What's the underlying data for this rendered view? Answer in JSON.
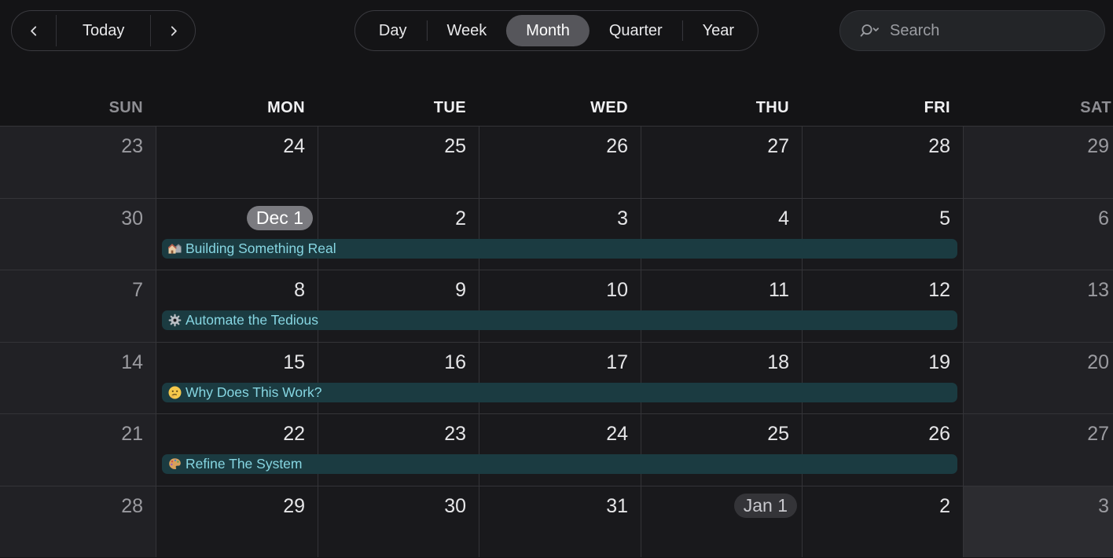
{
  "toolbar": {
    "prev_icon": "chevron-left-icon",
    "next_icon": "chevron-right-icon",
    "today_label": "Today",
    "views": [
      "Day",
      "Week",
      "Month",
      "Quarter",
      "Year"
    ],
    "active_view": "Month",
    "search_icon": "search-icon",
    "search_placeholder": "Search"
  },
  "calendar": {
    "weekday_headers": [
      "SUN",
      "MON",
      "TUE",
      "WED",
      "THU",
      "FRI",
      "SAT"
    ],
    "weekend_columns": [
      0,
      6
    ],
    "weeks": [
      [
        "23",
        "24",
        "25",
        "26",
        "27",
        "28",
        "29"
      ],
      [
        "30",
        "Dec 1",
        "2",
        "3",
        "4",
        "5",
        "6"
      ],
      [
        "7",
        "8",
        "9",
        "10",
        "11",
        "12",
        "13"
      ],
      [
        "14",
        "15",
        "16",
        "17",
        "18",
        "19",
        "20"
      ],
      [
        "21",
        "22",
        "23",
        "24",
        "25",
        "26",
        "27"
      ],
      [
        "28",
        "29",
        "30",
        "31",
        "Jan 1",
        "2",
        "3"
      ]
    ],
    "special_days": [
      {
        "week": 1,
        "day": 1,
        "label": "Dec 1",
        "type": "today-pill"
      },
      {
        "week": 5,
        "day": 4,
        "label": "Jan 1",
        "type": "month-start-pill"
      },
      {
        "week": 5,
        "day": 6,
        "label": "3",
        "type": "outside-month"
      }
    ],
    "events": [
      {
        "icon": "houses-icon",
        "emoji": "🏘️",
        "title": "Building Something Real",
        "week": 1,
        "start_day": "Mon",
        "end_day": "Fri"
      },
      {
        "icon": "gear-icon",
        "emoji": "⚙️",
        "title": "Automate the Tedious",
        "week": 2,
        "start_day": "Mon",
        "end_day": "Fri"
      },
      {
        "icon": "thinking-face-icon",
        "emoji": "🤔",
        "title": "Why Does This Work?",
        "week": 3,
        "start_day": "Mon",
        "end_day": "Fri"
      },
      {
        "icon": "palette-icon",
        "emoji": "🎨",
        "title": "Refine The System",
        "week": 4,
        "start_day": "Mon",
        "end_day": "Fri"
      }
    ],
    "colors": {
      "page_bg": "#141416",
      "weekday_cell_bg": "#19191C",
      "weekend_cell_bg": "#212125",
      "outside_month_weekend_cell_bg": "#2C2C30",
      "gridline": "#343438",
      "event_bg": "#1B3B41",
      "event_text": "#86D6E2",
      "today_pill_bg": "#7B7B80",
      "month_start_pill_bg": "#343438"
    }
  }
}
